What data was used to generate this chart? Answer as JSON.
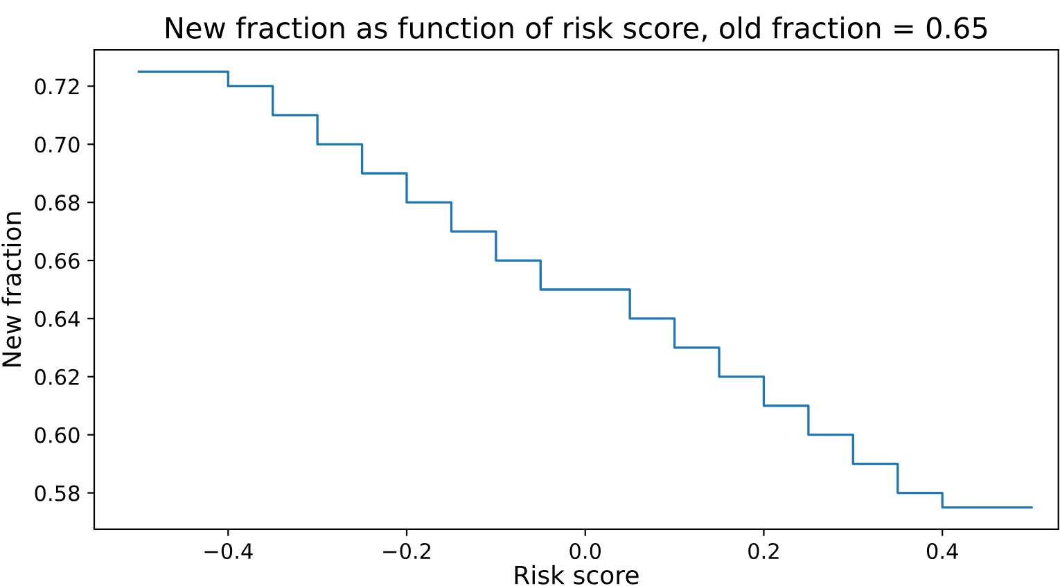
{
  "chart_data": {
    "type": "step",
    "title": "New fraction as function of risk score, old fraction = 0.65",
    "xlabel": "Risk score",
    "ylabel": "New fraction",
    "x": [
      -0.5,
      -0.4,
      -0.35,
      -0.3,
      -0.25,
      -0.2,
      -0.15,
      -0.1,
      -0.05,
      0.05,
      0.1,
      0.15,
      0.2,
      0.25,
      0.3,
      0.35,
      0.4,
      0.5
    ],
    "series": [
      {
        "color": "#1f77b4",
        "values": [
          0.725,
          0.72,
          0.71,
          0.7,
          0.69,
          0.68,
          0.67,
          0.66,
          0.65,
          0.64,
          0.63,
          0.62,
          0.61,
          0.6,
          0.59,
          0.58,
          0.575,
          0.575
        ]
      }
    ],
    "xlim": [
      -0.55,
      0.53
    ],
    "ylim": [
      0.5675,
      0.7325
    ],
    "xticks": [
      {
        "value": -0.4,
        "label": "−0.4"
      },
      {
        "value": -0.2,
        "label": "−0.2"
      },
      {
        "value": 0.0,
        "label": "0.0"
      },
      {
        "value": 0.2,
        "label": "0.2"
      },
      {
        "value": 0.4,
        "label": "0.4"
      }
    ],
    "yticks": [
      {
        "value": 0.58,
        "label": "0.58"
      },
      {
        "value": 0.6,
        "label": "0.60"
      },
      {
        "value": 0.62,
        "label": "0.62"
      },
      {
        "value": 0.64,
        "label": "0.64"
      },
      {
        "value": 0.66,
        "label": "0.66"
      },
      {
        "value": 0.68,
        "label": "0.68"
      },
      {
        "value": 0.7,
        "label": "0.70"
      },
      {
        "value": 0.72,
        "label": "0.72"
      }
    ],
    "grid": false,
    "legend": false
  }
}
